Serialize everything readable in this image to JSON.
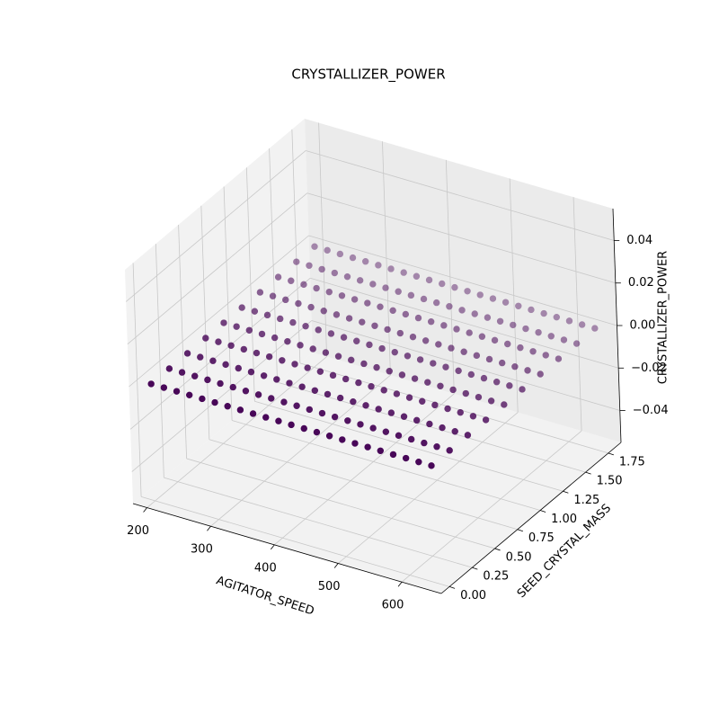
{
  "chart_data": {
    "type": "scatter3d",
    "title": "CRYSTALLIZER_POWER",
    "xlabel": "AGITATOR_SPEED",
    "ylabel": "SEED_CRYSTAL_MASS",
    "zlabel": "CRYSTALLIZER_POWER",
    "color": "#440154",
    "xlim": [
      178,
      662
    ],
    "ylim": [
      -0.09,
      1.89
    ],
    "zlim": [
      -0.055,
      0.055
    ],
    "xticks": [
      200,
      300,
      400,
      500,
      600
    ],
    "yticks": [
      {
        "value": 0,
        "label": "0.00"
      },
      {
        "value": 0.25,
        "label": "0.25"
      },
      {
        "value": 0.5,
        "label": "0.50"
      },
      {
        "value": 0.75,
        "label": "0.75"
      },
      {
        "value": 1,
        "label": "1.00"
      },
      {
        "value": 1.25,
        "label": "1.25"
      },
      {
        "value": 1.5,
        "label": "1.50"
      },
      {
        "value": 1.75,
        "label": "1.75"
      }
    ],
    "zticks": [
      {
        "value": -0.04,
        "label": "−0.04"
      },
      {
        "value": -0.02,
        "label": "−0.02"
      },
      {
        "value": 0,
        "label": "0.00"
      },
      {
        "value": 0.02,
        "label": "0.02"
      },
      {
        "value": 0.04,
        "label": "0.04"
      }
    ],
    "grid": true,
    "x": [
      200,
      220,
      240,
      260,
      280,
      300,
      320,
      340,
      360,
      380,
      400,
      420,
      440,
      460,
      480,
      500,
      520,
      540,
      560,
      580,
      600,
      620,
      640,
      200,
      220,
      240,
      260,
      280,
      300,
      320,
      340,
      360,
      380,
      400,
      420,
      440,
      460,
      480,
      500,
      520,
      540,
      560,
      580,
      600,
      620,
      640,
      200,
      220,
      240,
      260,
      280,
      300,
      320,
      340,
      360,
      380,
      400,
      420,
      440,
      460,
      480,
      500,
      520,
      540,
      560,
      580,
      600,
      620,
      640,
      200,
      220,
      240,
      260,
      280,
      300,
      320,
      340,
      360,
      380,
      400,
      420,
      440,
      460,
      480,
      500,
      520,
      540,
      560,
      580,
      600,
      620,
      640,
      200,
      220,
      240,
      260,
      280,
      300,
      320,
      340,
      360,
      380,
      400,
      420,
      440,
      460,
      480,
      500,
      520,
      540,
      560,
      580,
      600,
      620,
      640,
      200,
      220,
      240,
      260,
      280,
      300,
      320,
      340,
      360,
      380,
      400,
      420,
      440,
      460,
      480,
      500,
      520,
      540,
      560,
      580,
      600,
      620,
      640,
      200,
      220,
      240,
      260,
      280,
      300,
      320,
      340,
      360,
      380,
      400,
      420,
      440,
      460,
      480,
      500,
      520,
      540,
      560,
      580,
      600,
      620,
      640,
      200,
      220,
      240,
      260,
      280,
      300,
      320,
      340,
      360,
      380,
      400,
      420,
      440,
      460,
      480,
      500,
      520,
      540,
      560,
      580,
      600,
      620,
      640,
      200,
      220,
      240,
      260,
      280,
      300,
      320,
      340,
      360,
      380,
      400,
      420,
      440,
      460,
      480,
      500,
      520,
      540,
      560,
      580,
      600,
      620,
      640,
      200,
      220,
      240,
      260,
      280,
      300,
      320,
      340,
      360,
      380,
      400,
      420,
      440,
      460,
      480,
      500,
      520,
      540,
      560,
      580,
      600,
      620,
      640
    ],
    "y": [
      0,
      0,
      0,
      0,
      0,
      0,
      0,
      0,
      0,
      0,
      0,
      0,
      0,
      0,
      0,
      0,
      0,
      0,
      0,
      0,
      0,
      0,
      0,
      0.2,
      0.2,
      0.2,
      0.2,
      0.2,
      0.2,
      0.2,
      0.2,
      0.2,
      0.2,
      0.2,
      0.2,
      0.2,
      0.2,
      0.2,
      0.2,
      0.2,
      0.2,
      0.2,
      0.2,
      0.2,
      0.2,
      0.2,
      0.4,
      0.4,
      0.4,
      0.4,
      0.4,
      0.4,
      0.4,
      0.4,
      0.4,
      0.4,
      0.4,
      0.4,
      0.4,
      0.4,
      0.4,
      0.4,
      0.4,
      0.4,
      0.4,
      0.4,
      0.4,
      0.4,
      0.4,
      0.6,
      0.6,
      0.6,
      0.6,
      0.6,
      0.6,
      0.6,
      0.6,
      0.6,
      0.6,
      0.6,
      0.6,
      0.6,
      0.6,
      0.6,
      0.6,
      0.6,
      0.6,
      0.6,
      0.6,
      0.6,
      0.6,
      0.6,
      0.8,
      0.8,
      0.8,
      0.8,
      0.8,
      0.8,
      0.8,
      0.8,
      0.8,
      0.8,
      0.8,
      0.8,
      0.8,
      0.8,
      0.8,
      0.8,
      0.8,
      0.8,
      0.8,
      0.8,
      0.8,
      0.8,
      0.8,
      1,
      1,
      1,
      1,
      1,
      1,
      1,
      1,
      1,
      1,
      1,
      1,
      1,
      1,
      1,
      1,
      1,
      1,
      1,
      1,
      1,
      1,
      1,
      1.2,
      1.2,
      1.2,
      1.2,
      1.2,
      1.2,
      1.2,
      1.2,
      1.2,
      1.2,
      1.2,
      1.2,
      1.2,
      1.2,
      1.2,
      1.2,
      1.2,
      1.2,
      1.2,
      1.2,
      1.2,
      1.2,
      1.2,
      1.4,
      1.4,
      1.4,
      1.4,
      1.4,
      1.4,
      1.4,
      1.4,
      1.4,
      1.4,
      1.4,
      1.4,
      1.4,
      1.4,
      1.4,
      1.4,
      1.4,
      1.4,
      1.4,
      1.4,
      1.4,
      1.4,
      1.4,
      1.6,
      1.6,
      1.6,
      1.6,
      1.6,
      1.6,
      1.6,
      1.6,
      1.6,
      1.6,
      1.6,
      1.6,
      1.6,
      1.6,
      1.6,
      1.6,
      1.6,
      1.6,
      1.6,
      1.6,
      1.6,
      1.6,
      1.6,
      1.8,
      1.8,
      1.8,
      1.8,
      1.8,
      1.8,
      1.8,
      1.8,
      1.8,
      1.8,
      1.8,
      1.8,
      1.8,
      1.8,
      1.8,
      1.8,
      1.8,
      1.8,
      1.8,
      1.8,
      1.8,
      1.8,
      1.8
    ],
    "z": [
      0,
      0,
      0,
      0,
      0,
      0,
      0,
      0,
      0,
      0,
      0,
      0,
      0,
      0,
      0,
      0,
      0,
      0,
      0,
      0,
      0,
      0,
      0,
      0,
      0,
      0,
      0,
      0,
      0,
      0,
      0,
      0,
      0,
      0,
      0,
      0,
      0,
      0,
      0,
      0,
      0,
      0,
      0,
      0,
      0,
      0,
      0,
      0,
      0,
      0,
      0,
      0,
      0,
      0,
      0,
      0,
      0,
      0,
      0,
      0,
      0,
      0,
      0,
      0,
      0,
      0,
      0,
      0,
      0,
      0,
      0,
      0,
      0,
      0,
      0,
      0,
      0,
      0,
      0,
      0,
      0,
      0,
      0,
      0,
      0,
      0,
      0,
      0,
      0,
      0,
      0,
      0,
      0,
      0,
      0,
      0,
      0,
      0,
      0,
      0,
      0,
      0,
      0,
      0,
      0,
      0,
      0,
      0,
      0,
      0,
      0,
      0,
      0,
      0,
      0,
      0,
      0,
      0,
      0,
      0,
      0,
      0,
      0,
      0,
      0,
      0,
      0,
      0,
      0,
      0,
      0,
      0,
      0,
      0,
      0,
      0,
      0,
      0,
      0,
      0,
      0,
      0,
      0,
      0,
      0,
      0,
      0,
      0,
      0,
      0,
      0,
      0,
      0,
      0,
      0,
      0,
      0,
      0,
      0,
      0,
      0,
      0,
      0,
      0,
      0,
      0,
      0,
      0,
      0,
      0,
      0,
      0,
      0,
      0,
      0,
      0,
      0,
      0,
      0,
      0,
      0,
      0,
      0,
      0,
      0,
      0,
      0,
      0,
      0,
      0,
      0,
      0,
      0,
      0,
      0,
      0,
      0,
      0,
      0,
      0,
      0,
      0,
      0,
      0,
      0,
      0,
      0,
      0,
      0,
      0,
      0,
      0,
      0,
      0,
      0,
      0,
      0,
      0,
      0,
      0,
      0,
      0,
      0,
      0,
      0,
      0,
      0,
      0,
      0,
      0
    ]
  }
}
